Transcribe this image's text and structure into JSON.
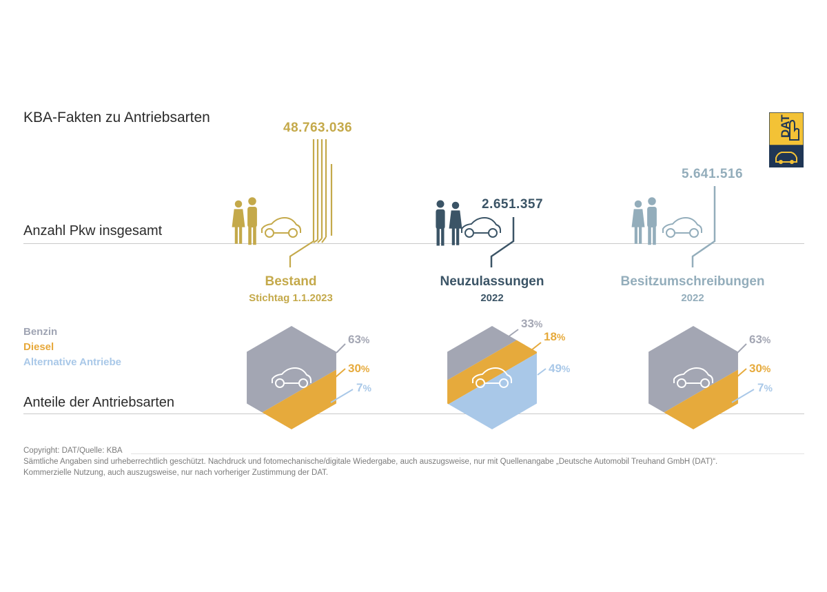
{
  "title": "KBA-Fakten zu Antriebsarten",
  "row_labels": {
    "total": "Anzahl Pkw insgesamt",
    "shares": "Anteile der Antriebsarten"
  },
  "logo": {
    "text": "DAT",
    "colors": {
      "top": "#f3c236",
      "bottom": "#1f3655"
    }
  },
  "legend": [
    {
      "label": "Benzin",
      "color": "#9fa4b3"
    },
    {
      "label": "Diesel",
      "color": "#e7a83a"
    },
    {
      "label": "Alternative Antriebe",
      "color": "#a9c8e8"
    }
  ],
  "colors": {
    "bestand": "#c4a94a",
    "neuzulassungen": "#3b5466",
    "besitzumschreibungen": "#93adbb",
    "benzin": "#a3a6b3",
    "diesel": "#e6aa3c",
    "alternative": "#a9c8e8"
  },
  "categories": [
    {
      "key": "bestand",
      "title": "Bestand",
      "subtitle": "Stichtag 1.1.2023",
      "total": "48.763.036",
      "shares": {
        "benzin": "63",
        "diesel": "30",
        "alternative": "7"
      }
    },
    {
      "key": "neuzulassungen",
      "title": "Neuzulassungen",
      "subtitle": "2022",
      "total": "2.651.357",
      "shares": {
        "benzin": "33",
        "diesel": "18",
        "alternative": "49"
      }
    },
    {
      "key": "besitzumschreibungen",
      "title": "Besitzumschreibungen",
      "subtitle": "2022",
      "total": "5.641.516",
      "shares": {
        "benzin": "63",
        "diesel": "30",
        "alternative": "7"
      }
    }
  ],
  "percent_sign": "%",
  "footer": {
    "line1": "Copyright: DAT/Quelle: KBA",
    "line2": "Sämtliche Angaben sind urheberrechtlich geschützt. Nachdruck und fotomechanische/digitale Wiedergabe, auch auszugsweise, nur mit Quellenangabe „Deutsche Automobil Treuhand GmbH (DAT)“.",
    "line3": "Kommerzielle Nutzung, auch auszugsweise, nur nach vorheriger Zustimmung der DAT."
  },
  "chart_data": [
    {
      "type": "bar",
      "title": "Anzahl Pkw insgesamt",
      "categories": [
        "Bestand",
        "Neuzulassungen",
        "Besitzumschreibungen"
      ],
      "values": [
        48763036,
        2651357,
        5641516
      ]
    },
    {
      "type": "pie",
      "title": "Anteile der Antriebsarten",
      "categories": [
        "Benzin",
        "Diesel",
        "Alternative Antriebe"
      ],
      "series": [
        {
          "name": "Bestand",
          "values": [
            63,
            30,
            7
          ]
        },
        {
          "name": "Neuzulassungen",
          "values": [
            33,
            18,
            49
          ]
        },
        {
          "name": "Besitzumschreibungen",
          "values": [
            63,
            30,
            7
          ]
        }
      ]
    }
  ]
}
